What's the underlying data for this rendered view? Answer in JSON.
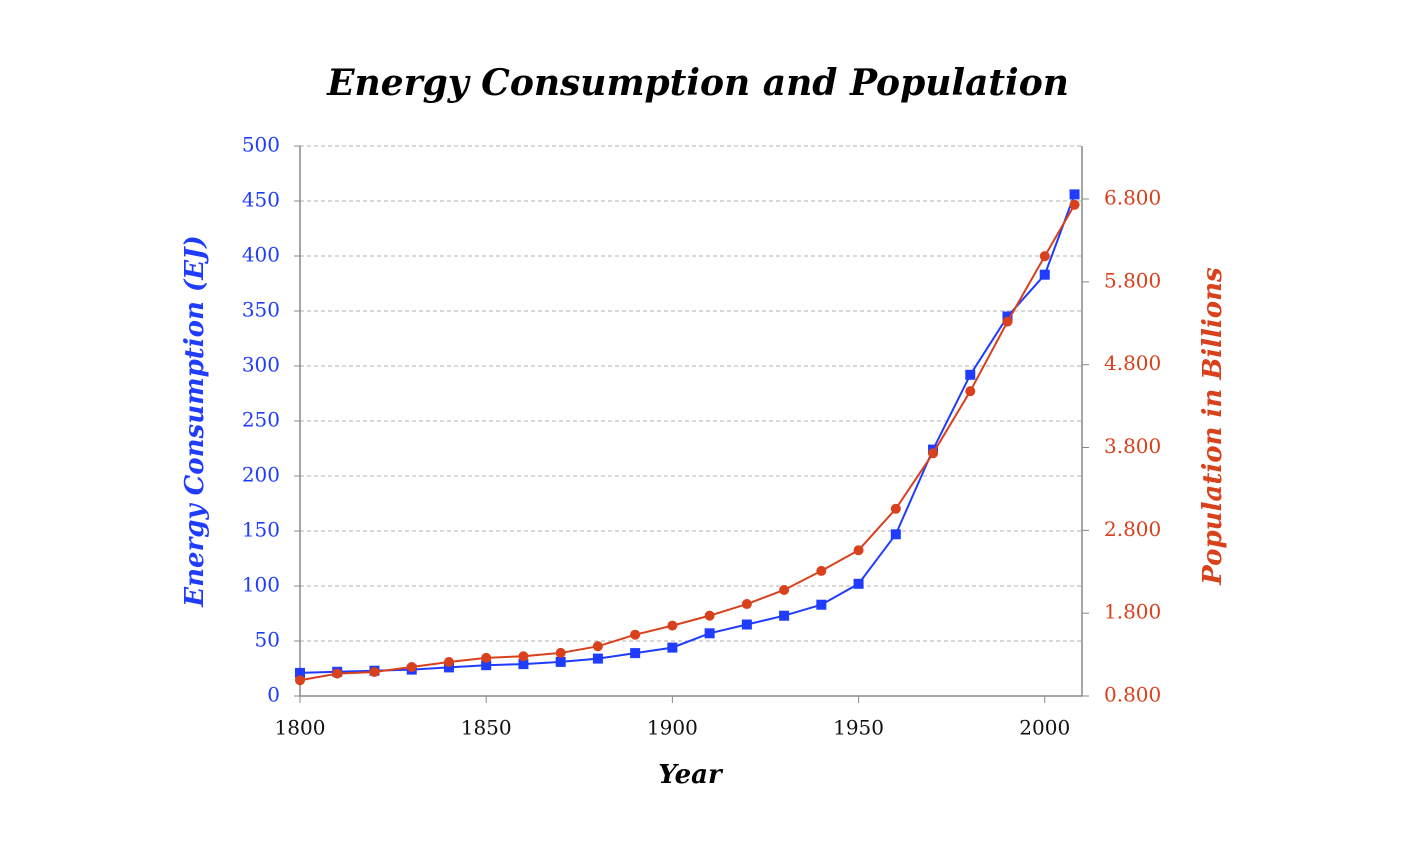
{
  "chart_data": {
    "type": "line",
    "title": "Energy Consumption and Population",
    "x_label": "Year",
    "y_label": "Energy Consumption (EJ)",
    "y2_label": "Population in Billions",
    "x": [
      1800,
      1810,
      1820,
      1830,
      1840,
      1850,
      1860,
      1870,
      1880,
      1890,
      1900,
      1910,
      1920,
      1930,
      1940,
      1950,
      1960,
      1970,
      1980,
      1990,
      2000,
      2008
    ],
    "series": [
      {
        "color": "#1f3cff",
        "marker": "square",
        "values": [
          21,
          22,
          23,
          24,
          26,
          28,
          29,
          31,
          34,
          39,
          44,
          57,
          65,
          73,
          83,
          102,
          147,
          224,
          292,
          345,
          383,
          456
        ]
      },
      {
        "color": "#d9401c",
        "marker": "circle",
        "axis": "y2",
        "values": [
          0.99,
          1.07,
          1.09,
          1.15,
          1.21,
          1.26,
          1.28,
          1.32,
          1.4,
          1.54,
          1.65,
          1.77,
          1.91,
          2.08,
          2.31,
          2.56,
          3.06,
          3.73,
          4.48,
          5.32,
          6.11,
          6.73
        ]
      }
    ],
    "xlim": [
      1800,
      2010
    ],
    "xticks": [
      1800,
      1850,
      1900,
      1950,
      2000
    ],
    "ylim": [
      0,
      500
    ],
    "yticks": [
      0,
      50,
      100,
      150,
      200,
      250,
      300,
      350,
      400,
      450,
      500
    ],
    "y2lim": [
      0.8,
      7.44
    ],
    "y2ticks": [
      {
        "value": 0.8,
        "label": "0.800"
      },
      {
        "value": 1.8,
        "label": "1.800"
      },
      {
        "value": 2.8,
        "label": "2.800"
      },
      {
        "value": 3.8,
        "label": "3.800"
      },
      {
        "value": 4.8,
        "label": "4.800"
      },
      {
        "value": 5.8,
        "label": "5.800"
      },
      {
        "value": 6.8,
        "label": "6.800"
      }
    ],
    "grid": true
  }
}
